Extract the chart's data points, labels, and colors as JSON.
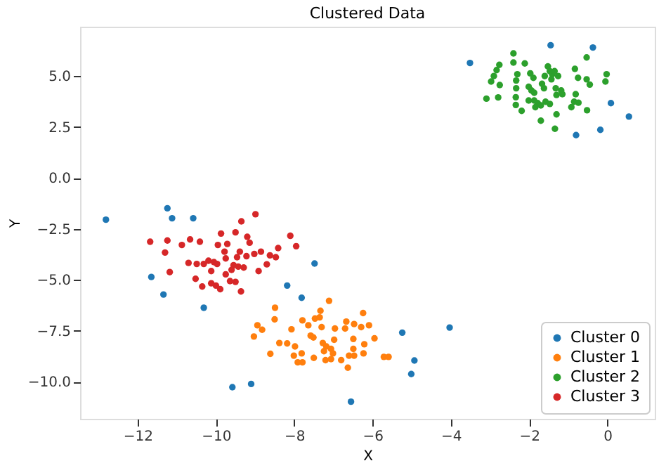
{
  "chart_data": {
    "type": "scatter",
    "title": "Clustered Data",
    "xlabel": "X",
    "ylabel": "Y",
    "xlim": [
      -13.47,
      1.21
    ],
    "ylim": [
      -11.82,
      7.42
    ],
    "xticks": [
      -12,
      -10,
      -8,
      -6,
      -4,
      -2,
      0
    ],
    "yticks": [
      {
        "value": -10,
        "label": "−10.0"
      },
      {
        "value": -7.5,
        "label": "−7.5"
      },
      {
        "value": -5,
        "label": "−5.0"
      },
      {
        "value": -2.5,
        "label": "−2.5"
      },
      {
        "value": 0,
        "label": "0.0"
      },
      {
        "value": 2.5,
        "label": "2.5"
      },
      {
        "value": 5,
        "label": "5.0"
      }
    ],
    "grid": false,
    "legend": "bottom right",
    "marker": "circle",
    "series": [
      {
        "name": "Cluster 0",
        "color": "#1f77b4",
        "x": [
          -12.81,
          -11.24,
          -11.12,
          -10.58,
          -11.65,
          -11.34,
          -10.31,
          -7.48,
          -8.18,
          -7.81,
          -5.24,
          -4.03,
          -4.93,
          -5.01,
          -9.58,
          -9.1,
          -6.55,
          -3.51,
          -1.45,
          -0.37,
          0.09,
          0.55,
          -0.18,
          -0.8
        ],
        "values": [
          -2.05,
          -1.49,
          -1.98,
          -1.98,
          -4.86,
          -5.72,
          -6.37,
          -4.2,
          -5.28,
          -5.88,
          -7.59,
          -7.34,
          -8.96,
          -9.62,
          -10.27,
          -10.11,
          -10.98,
          5.64,
          6.51,
          6.4,
          3.67,
          3.01,
          2.36,
          2.1
        ]
      },
      {
        "name": "Cluster 1",
        "color": "#ff7f0e",
        "x": [
          -7.11,
          -8.49,
          -8.5,
          -8.94,
          -8.82,
          -9.03,
          -8.61,
          -8.38,
          -8.18,
          -8.07,
          -7.79,
          -7.64,
          -7.58,
          -7.51,
          -7.98,
          -7.81,
          -8.01,
          -7.91,
          -7.79,
          -7.5,
          -7.47,
          -7.33,
          -7.35,
          -7.3,
          -7.27,
          -7.18,
          -7.24,
          -7.06,
          -6.98,
          -7.01,
          -7.2,
          -7.06,
          -6.8,
          -6.96,
          -6.67,
          -6.7,
          -6.49,
          -6.49,
          -6.47,
          -6.29,
          -6.24,
          -6.21,
          -6.23,
          -6.09,
          -5.95,
          -5.71,
          -5.59,
          -6.6,
          -6.63,
          -6.47
        ],
        "values": [
          -6.03,
          -6.37,
          -6.94,
          -7.23,
          -7.45,
          -7.78,
          -8.63,
          -8.1,
          -8.12,
          -7.43,
          -6.99,
          -7.23,
          -7.74,
          -7.83,
          -8.27,
          -8.61,
          -8.72,
          -9.05,
          -9.05,
          -8.83,
          -6.9,
          -6.52,
          -6.84,
          -7.32,
          -8.1,
          -8.27,
          -8.5,
          -8.39,
          -7.94,
          -8.61,
          -8.94,
          -8.89,
          -8.94,
          -7.39,
          -7.05,
          -7.39,
          -7.9,
          -8.39,
          -7.17,
          -7.32,
          -6.63,
          -8.16,
          -8.61,
          -7.23,
          -7.87,
          -8.78,
          -8.78,
          -8.72,
          -9.31,
          -8.72
        ]
      },
      {
        "name": "Cluster 2",
        "color": "#2ca02c",
        "x": [
          -2.4,
          -2.4,
          -2.11,
          -2.76,
          -2.83,
          -2.9,
          -2.97,
          -2.75,
          -3.09,
          -2.79,
          -2.3,
          -2.33,
          -2.33,
          -2.34,
          -2.34,
          -2.19,
          -1.97,
          -1.89,
          -2.01,
          -1.94,
          -1.87,
          -2.01,
          -1.87,
          -1.78,
          -1.84,
          -1.7,
          -1.58,
          -1.62,
          -1.67,
          -1.6,
          -1.52,
          -1.47,
          -1.41,
          -1.35,
          -1.43,
          -1.26,
          -1.32,
          -1.18,
          -1.3,
          -1.15,
          -1.47,
          -1.3,
          -1.7,
          -1.34,
          -0.83,
          -0.75,
          -0.81,
          -0.85,
          -0.92,
          -0.74,
          -0.53,
          -0.45,
          -0.53,
          -0.02,
          -0.05,
          -0.52
        ],
        "values": [
          6.11,
          5.66,
          5.62,
          5.55,
          5.29,
          5.0,
          4.73,
          4.56,
          3.89,
          3.95,
          5.09,
          4.78,
          4.4,
          3.96,
          3.58,
          3.29,
          5.13,
          4.91,
          4.47,
          4.29,
          4.18,
          3.8,
          3.8,
          3.67,
          3.47,
          3.56,
          3.74,
          4.4,
          4.62,
          5.0,
          5.47,
          5.24,
          5.09,
          5.24,
          4.84,
          5.0,
          4.4,
          4.29,
          4.07,
          4.11,
          3.63,
          3.12,
          2.81,
          2.41,
          5.35,
          4.91,
          4.11,
          3.74,
          3.47,
          3.69,
          5.91,
          4.58,
          4.84,
          5.09,
          4.73,
          3.32
        ]
      },
      {
        "name": "Cluster 3",
        "color": "#d62728",
        "x": [
          -8.99,
          -9.35,
          -9.5,
          -9.2,
          -9.87,
          -9.14,
          -8.1,
          -7.95,
          -8.41,
          -8.85,
          -9.02,
          -8.62,
          -8.47,
          -8.7,
          -8.91,
          -9.22,
          -9.39,
          -9.46,
          -9.55,
          -9.6,
          -9.43,
          -9.29,
          -9.78,
          -9.75,
          -9.71,
          -9.95,
          -9.97,
          -9.75,
          -9.64,
          -9.5,
          -9.36,
          -9.89,
          -10.0,
          -10.12,
          -10.35,
          -10.52,
          -10.31,
          -10.49,
          -10.7,
          -10.19,
          -10.05,
          -10.12,
          -10.66,
          -10.87,
          -10.41,
          -11.24,
          -11.68,
          -11.3,
          -11.18
        ],
        "values": [
          -1.78,
          -2.13,
          -2.67,
          -2.89,
          -2.73,
          -3.18,
          -2.84,
          -3.35,
          -3.44,
          -3.62,
          -3.73,
          -3.8,
          -3.89,
          -4.24,
          -4.57,
          -3.84,
          -3.62,
          -3.89,
          -4.28,
          -4.51,
          -4.35,
          -4.4,
          -3.62,
          -3.95,
          -3.24,
          -3.29,
          -4.22,
          -4.73,
          -5.06,
          -5.1,
          -5.57,
          -5.46,
          -5.28,
          -5.17,
          -5.33,
          -4.95,
          -4.22,
          -4.22,
          -4.17,
          -4.06,
          -4.13,
          -4.57,
          -3.02,
          -3.29,
          -3.13,
          -3.07,
          -3.13,
          -3.66,
          -4.62
        ]
      }
    ]
  }
}
